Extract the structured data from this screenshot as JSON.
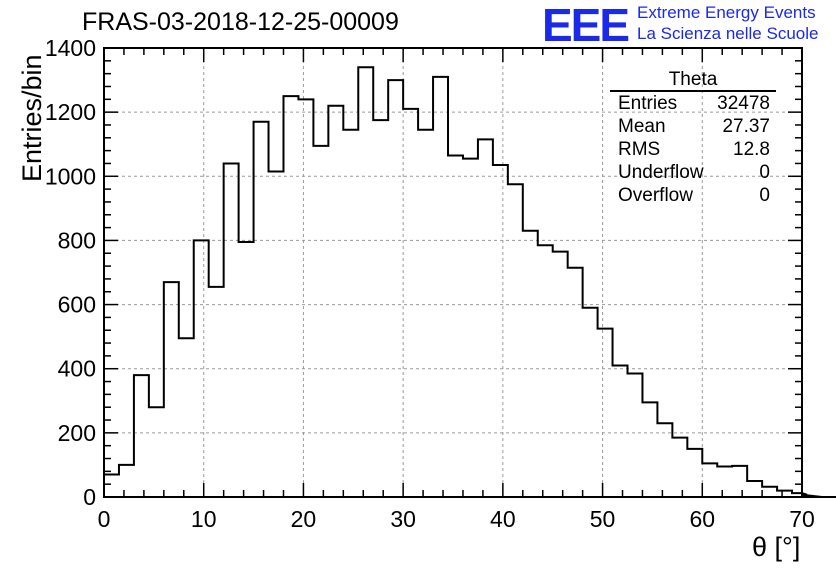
{
  "header": {
    "title": "FRAS-03-2018-12-25-00009",
    "logo_text": "EEE",
    "logo_line1": "Extreme Energy Events",
    "logo_line2": "La Scienza nelle Scuole"
  },
  "stats": {
    "name": "Theta",
    "rows": [
      {
        "label": "Entries",
        "value": "32478"
      },
      {
        "label": "Mean",
        "value": "27.37"
      },
      {
        "label": "RMS",
        "value": "12.8"
      },
      {
        "label": "Underflow",
        "value": "0"
      },
      {
        "label": "Overflow",
        "value": "0"
      }
    ]
  },
  "chart_data": {
    "type": "bar",
    "style": "step-histogram",
    "title": "FRAS-03-2018-12-25-00009",
    "xlabel": "θ [°]",
    "ylabel": "Entries/bin",
    "xlim": [
      0,
      70
    ],
    "ylim": [
      0,
      1400
    ],
    "bin_width": 1.5,
    "x_ticks": [
      0,
      10,
      20,
      30,
      40,
      50,
      60,
      70
    ],
    "y_ticks": [
      0,
      200,
      400,
      600,
      800,
      1000,
      1200,
      1400
    ],
    "grid": true,
    "values": [
      70,
      100,
      380,
      280,
      670,
      495,
      800,
      655,
      1040,
      795,
      1170,
      1015,
      1250,
      1240,
      1095,
      1220,
      1145,
      1340,
      1175,
      1300,
      1210,
      1145,
      1310,
      1065,
      1055,
      1115,
      1035,
      975,
      830,
      785,
      765,
      715,
      590,
      525,
      410,
      385,
      295,
      230,
      185,
      150,
      105,
      95,
      97,
      50,
      32,
      20,
      12,
      7,
      0,
      0
    ]
  }
}
